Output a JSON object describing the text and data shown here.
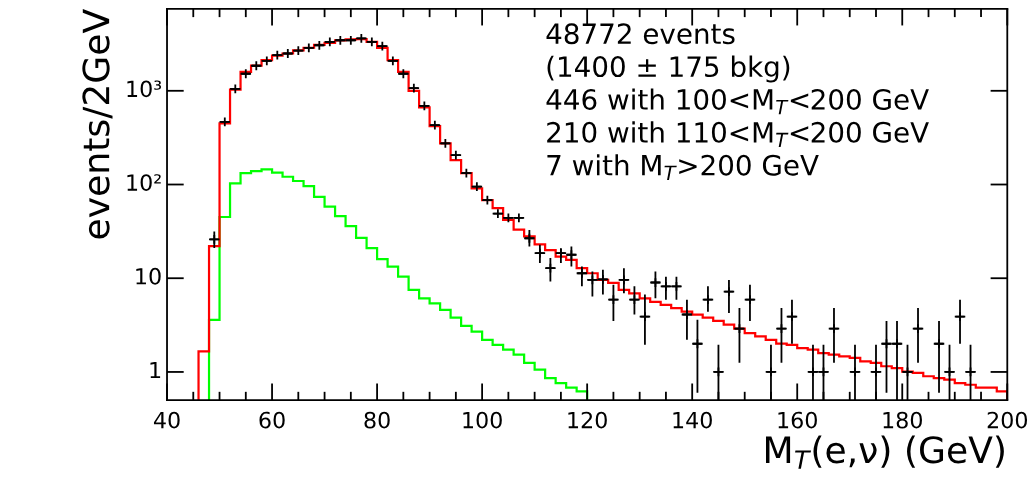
{
  "chart_data": {
    "type": "histogram",
    "ylabel": "events/2GeV",
    "xlabel": "M$_{T}$(e,ν) (GeV)",
    "annotations": [
      "48772 events",
      "(1400 ± 175 bkg)",
      "446 with 100<M$_{T}$<200 GeV",
      "210 with 110<M$_{T}$<200 GeV",
      "7 with M$_{T}$>200 GeV"
    ],
    "log": "y",
    "grid": false,
    "xlim": [
      40,
      200
    ],
    "ylim": [
      0.5,
      7500
    ],
    "xticks": [
      40,
      {
        "value": 45,
        "label": null
      },
      {
        "value": 50,
        "label": null
      },
      {
        "value": 55,
        "label": null
      },
      60,
      {
        "value": 65,
        "label": null
      },
      {
        "value": 70,
        "label": null
      },
      {
        "value": 75,
        "label": null
      },
      80,
      {
        "value": 85,
        "label": null
      },
      {
        "value": 90,
        "label": null
      },
      {
        "value": 95,
        "label": null
      },
      100,
      {
        "value": 105,
        "label": null
      },
      {
        "value": 110,
        "label": null
      },
      {
        "value": 115,
        "label": null
      },
      120,
      {
        "value": 125,
        "label": null
      },
      {
        "value": 130,
        "label": null
      },
      {
        "value": 135,
        "label": null
      },
      140,
      {
        "value": 145,
        "label": null
      },
      {
        "value": 150,
        "label": null
      },
      {
        "value": 155,
        "label": null
      },
      160,
      {
        "value": 165,
        "label": null
      },
      {
        "value": 170,
        "label": null
      },
      {
        "value": 175,
        "label": null
      },
      180,
      {
        "value": 185,
        "label": null
      },
      {
        "value": 190,
        "label": null
      },
      {
        "value": 195,
        "label": null
      },
      200
    ],
    "yticks": [
      1,
      10,
      {
        "value": 100,
        "label": "10²"
      },
      {
        "value": 1000,
        "label": "10³"
      }
    ],
    "series": [
      {
        "type": "histogram",
        "color": "#00ff00",
        "bins": [
          48,
          50,
          52,
          54,
          56,
          58,
          60,
          62,
          64,
          66,
          68,
          70,
          72,
          74,
          76,
          78,
          80,
          82,
          84,
          86,
          88,
          90,
          92,
          94,
          96,
          98,
          100,
          102,
          104,
          106,
          108,
          110,
          112,
          114,
          116,
          118,
          120
        ],
        "values": [
          3.6,
          45,
          103,
          132,
          139,
          145,
          134,
          121,
          109,
          96,
          74,
          58,
          46,
          36,
          27,
          21,
          16,
          13.3,
          10.4,
          7.5,
          6.1,
          5.4,
          4.6,
          3.8,
          3.1,
          2.7,
          2.2,
          1.95,
          1.73,
          1.53,
          1.25,
          1.06,
          0.86,
          0.76,
          0.68,
          0.62
        ]
      },
      {
        "type": "histogram",
        "color": "#ff0000",
        "bins": [
          46,
          48,
          50,
          52,
          54,
          56,
          58,
          60,
          62,
          64,
          66,
          68,
          70,
          72,
          74,
          76,
          78,
          80,
          82,
          84,
          86,
          88,
          90,
          92,
          94,
          96,
          98,
          100,
          102,
          104,
          106,
          108,
          110,
          112,
          114,
          116,
          118,
          120,
          122,
          124,
          126,
          128,
          130,
          132,
          134,
          136,
          138,
          140,
          142,
          144,
          146,
          148,
          150,
          152,
          154,
          156,
          158,
          160,
          162,
          164,
          166,
          168,
          170,
          172,
          174,
          176,
          178,
          180,
          182,
          184,
          186,
          188,
          190,
          192,
          194,
          196,
          198,
          200
        ],
        "values": [
          1.66,
          22,
          450,
          1030,
          1590,
          1860,
          2130,
          2370,
          2500,
          2700,
          2880,
          3090,
          3250,
          3460,
          3540,
          3560,
          3320,
          2870,
          2130,
          1590,
          1000,
          665,
          420,
          275,
          182,
          132,
          91,
          68,
          56,
          42,
          33,
          28,
          23,
          20,
          17,
          15.7,
          12.8,
          11.3,
          9.6,
          8.9,
          7.5,
          6.9,
          6.1,
          5.6,
          5.2,
          4.8,
          4.4,
          4.1,
          3.8,
          3.5,
          3.2,
          2.9,
          2.6,
          2.4,
          2.2,
          2.0,
          1.95,
          1.8,
          1.73,
          1.59,
          1.53,
          1.47,
          1.41,
          1.3,
          1.25,
          1.15,
          1.1,
          1.01,
          0.98,
          0.9,
          0.86,
          0.83,
          0.76,
          0.73,
          0.68,
          0.68,
          0.62
        ]
      },
      {
        "type": "scatter",
        "color": "#000000",
        "marker": "cross",
        "x": [
          49,
          51,
          53,
          55,
          57,
          59,
          61,
          63,
          65,
          67,
          69,
          71,
          73,
          75,
          77,
          79,
          81,
          83,
          85,
          87,
          89,
          91,
          93,
          95,
          97,
          99,
          101,
          103,
          105,
          107,
          109,
          111,
          113,
          115,
          117,
          119,
          121,
          123,
          125,
          127,
          129,
          131,
          133,
          135,
          137,
          139,
          141,
          143,
          145,
          147,
          149,
          151,
          155,
          157,
          159,
          163,
          165,
          167,
          171,
          175,
          177,
          179,
          181,
          183,
          187,
          189,
          191,
          193
        ],
        "values": [
          26,
          465,
          1050,
          1520,
          1850,
          2090,
          2400,
          2500,
          2680,
          2870,
          3060,
          3320,
          3460,
          3460,
          3620,
          3320,
          2990,
          2090,
          1520,
          1070,
          690,
          430,
          275,
          206,
          132,
          95,
          68,
          49,
          44,
          44,
          26.7,
          18.5,
          12.8,
          18.5,
          17.8,
          11.3,
          9.6,
          9.7,
          5.9,
          9.6,
          5.9,
          3.9,
          9.0,
          8.2,
          8.2,
          4.1,
          2.0,
          5.9,
          1.0,
          7.2,
          2.9,
          5.9,
          1.0,
          2.9,
          3.9,
          1.0,
          1.0,
          2.9,
          1.0,
          1.0,
          2.0,
          2.0,
          1.0,
          2.9,
          2.0,
          1.0,
          3.9,
          1.0
        ],
        "errors": [
          [
            21,
            31.5
          ],
          null,
          null,
          null,
          null,
          null,
          null,
          null,
          null,
          null,
          null,
          null,
          null,
          null,
          null,
          null,
          null,
          null,
          null,
          null,
          null,
          null,
          null,
          null,
          null,
          null,
          null,
          null,
          null,
          null,
          [
            21.8,
            32.7
          ],
          [
            14.5,
            22.7
          ],
          [
            9.2,
            16.4
          ],
          [
            14.5,
            20.9
          ],
          [
            13.3,
            21.8
          ],
          [
            8.2,
            13.3
          ],
          [
            6.4,
            11.8
          ],
          [
            6.7,
            12.3
          ],
          [
            3.5,
            8.5
          ],
          [
            6.9,
            12.8
          ],
          [
            4.1,
            8.2
          ],
          [
            1.95,
            6.7
          ],
          [
            6.1,
            11.8
          ],
          [
            5.9,
            10.4
          ],
          [
            5.9,
            10.4
          ],
          [
            2.2,
            5.9
          ],
          [
            0.6,
            3.6
          ],
          [
            4.4,
            8.2
          ],
          [
            0.5,
            1.95
          ],
          [
            4.25,
            9.6
          ],
          [
            1.25,
            4.8
          ],
          [
            3.5,
            8.5
          ],
          [
            0.5,
            1.95
          ],
          [
            1.25,
            4.8
          ],
          [
            2.0,
            5.9
          ],
          [
            0.5,
            1.95
          ],
          [
            0.5,
            1.95
          ],
          [
            1.25,
            4.8
          ],
          [
            0.5,
            1.95
          ],
          [
            0.5,
            1.95
          ],
          [
            0.6,
            3.5
          ],
          [
            0.5,
            3.5
          ],
          [
            0.5,
            1.95
          ],
          [
            1.25,
            4.8
          ],
          [
            0.6,
            3.5
          ],
          [
            0.5,
            1.95
          ],
          [
            2.0,
            5.9
          ],
          [
            0.5,
            1.95
          ]
        ],
        "xerrors": [
          1,
          1,
          1,
          1,
          1,
          1,
          1,
          1,
          1,
          1,
          1,
          1,
          1,
          1,
          1,
          1,
          1,
          1,
          1,
          1,
          1,
          1,
          1,
          1,
          1,
          1,
          1,
          1,
          1,
          1,
          1,
          1,
          1,
          1,
          1,
          1,
          1,
          1,
          1,
          1,
          1,
          1,
          1,
          1,
          1,
          1,
          1,
          1,
          1,
          1,
          1,
          1,
          1,
          1,
          1,
          1,
          1,
          1,
          1,
          1,
          1,
          1,
          1,
          1,
          1,
          1,
          1,
          1
        ]
      }
    ]
  }
}
